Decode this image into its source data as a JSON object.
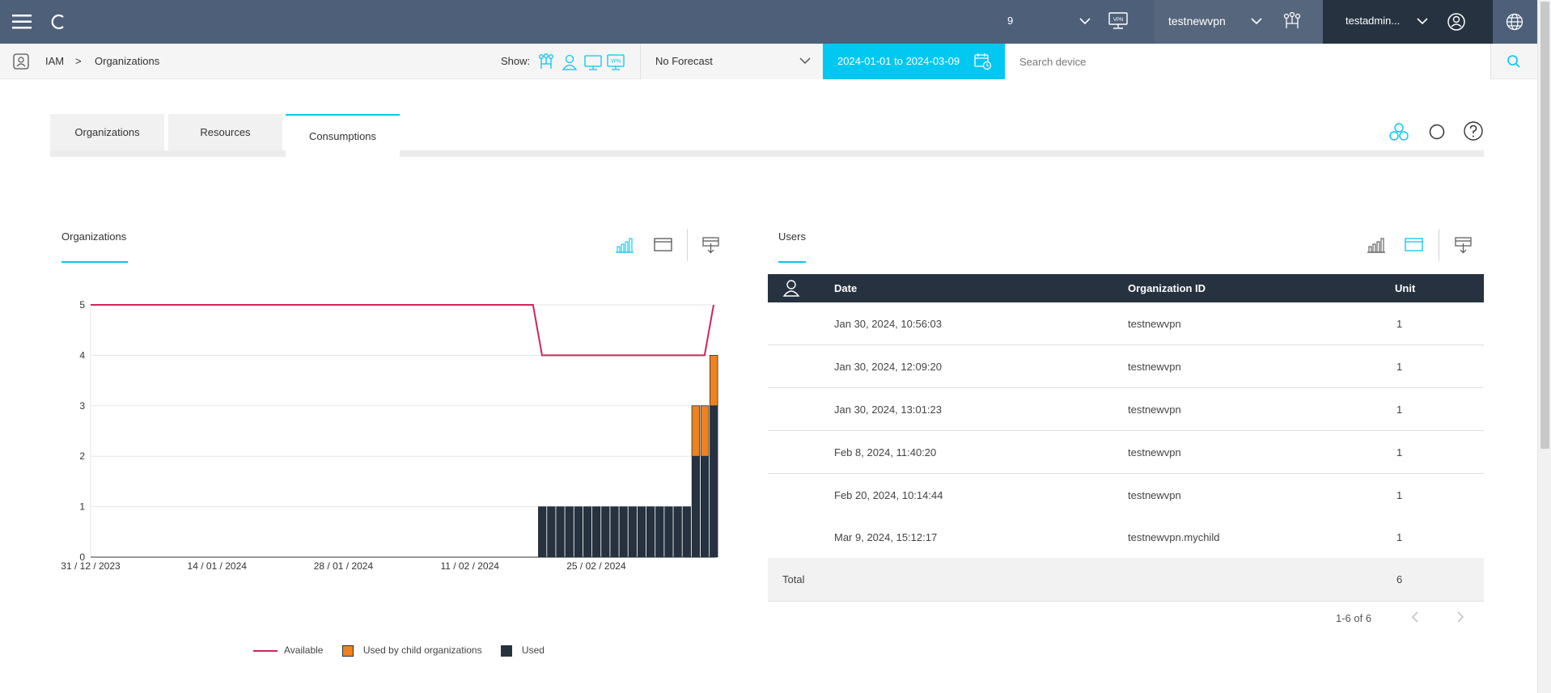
{
  "topbar": {
    "count": "9",
    "org_name": "testnewvpn",
    "user_name": "testadmin..."
  },
  "subbar": {
    "breadcrumb": [
      "IAM",
      ">",
      "Organizations"
    ],
    "show_label": "Show:",
    "forecast_value": "No Forecast",
    "date_range": "2024-01-01 to 2024-03-09",
    "search_placeholder": "Search device"
  },
  "tabs": [
    {
      "label": "Organizations",
      "active": false
    },
    {
      "label": "Resources",
      "active": false
    },
    {
      "label": "Consumptions",
      "active": true
    }
  ],
  "left_panel": {
    "title": "Organizations"
  },
  "right_panel": {
    "title": "Users"
  },
  "table": {
    "headers": [
      "Date",
      "Organization ID",
      "Unit"
    ],
    "rows": [
      {
        "date": "Jan 30, 2024, 10:56:03",
        "org": "testnewvpn",
        "unit": "1"
      },
      {
        "date": "Jan 30, 2024, 12:09:20",
        "org": "testnewvpn",
        "unit": "1"
      },
      {
        "date": "Jan 30, 2024, 13:01:23",
        "org": "testnewvpn",
        "unit": "1"
      },
      {
        "date": "Feb 8, 2024, 11:40:20",
        "org": "testnewvpn",
        "unit": "1"
      },
      {
        "date": "Feb 20, 2024, 10:14:44",
        "org": "testnewvpn",
        "unit": "1"
      },
      {
        "date": "Mar 9, 2024, 15:12:17",
        "org": "testnewvpn.mychild",
        "unit": "1"
      }
    ],
    "total_label": "Total",
    "total_value": "6",
    "pager_text": "1-6 of 6"
  },
  "colors": {
    "accent": "#00c8f0",
    "available": "#d0245a",
    "child": "#f0821e",
    "used": "#263240"
  },
  "chart_data": {
    "type": "bar",
    "y_ticks": [
      "0",
      "1",
      "2",
      "3",
      "4",
      "5"
    ],
    "ylim": [
      0,
      5
    ],
    "x_tick_labels": [
      "31 / 12 / 2023",
      "14 / 01 / 2024",
      "28 / 01 / 2024",
      "11 / 02 / 2024",
      "25 / 02 / 2024"
    ],
    "x_range_days": [
      0,
      69
    ],
    "legend": [
      "Available",
      "Used by child organizations",
      "Used"
    ],
    "legend_position": "bottom",
    "available_line": [
      [
        0,
        5
      ],
      [
        49,
        5
      ],
      [
        50,
        4
      ],
      [
        68,
        4
      ],
      [
        69,
        5
      ]
    ],
    "bars": {
      "start_day": 50,
      "used": [
        1,
        1,
        1,
        1,
        1,
        1,
        1,
        1,
        1,
        1,
        1,
        1,
        1,
        1,
        1,
        1,
        1,
        2,
        2,
        3
      ],
      "child": [
        0,
        0,
        0,
        0,
        0,
        0,
        0,
        0,
        0,
        0,
        0,
        0,
        0,
        0,
        0,
        0,
        0,
        1,
        1,
        1
      ]
    }
  }
}
